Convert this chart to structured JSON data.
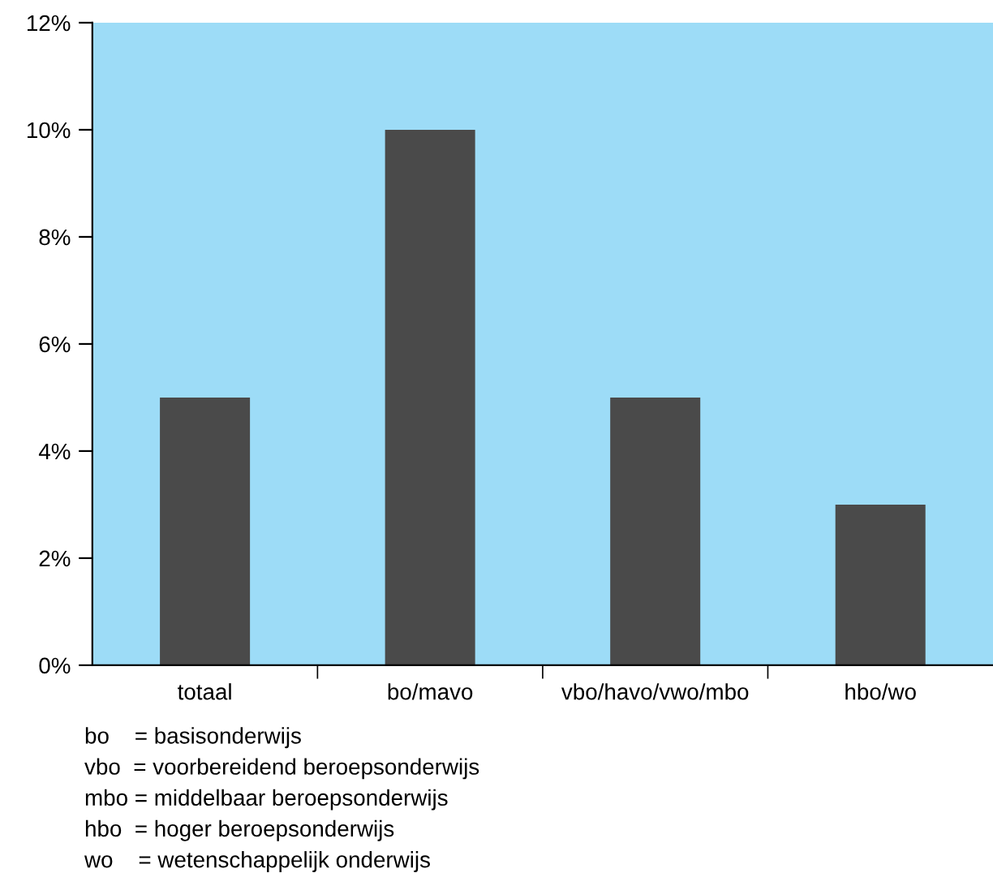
{
  "chart_data": {
    "type": "bar",
    "categories": [
      "totaal",
      "bo/mavo",
      "vbo/havo/vwo/mbo",
      "hbo/wo"
    ],
    "values": [
      5,
      10,
      5,
      3
    ],
    "color": "#4a4a4a",
    "ylim": [
      0,
      12
    ],
    "yticks": [
      {
        "value": 0,
        "label": "0%"
      },
      {
        "value": 2,
        "label": "2%"
      },
      {
        "value": 4,
        "label": "4%"
      },
      {
        "value": 6,
        "label": "6%"
      },
      {
        "value": 8,
        "label": "8%"
      },
      {
        "value": 10,
        "label": "10%"
      },
      {
        "value": 12,
        "label": "12%"
      }
    ],
    "grid": false,
    "legend": false,
    "annotations": [
      "bo    = basisonderwijs",
      "vbo  = voorbereidend beroepsonderwijs",
      "mbo = middelbaar beroepsonderwijs",
      "hbo  = hoger beroepsonderwijs",
      "wo    = wetenschappelijk onderwijs"
    ]
  }
}
